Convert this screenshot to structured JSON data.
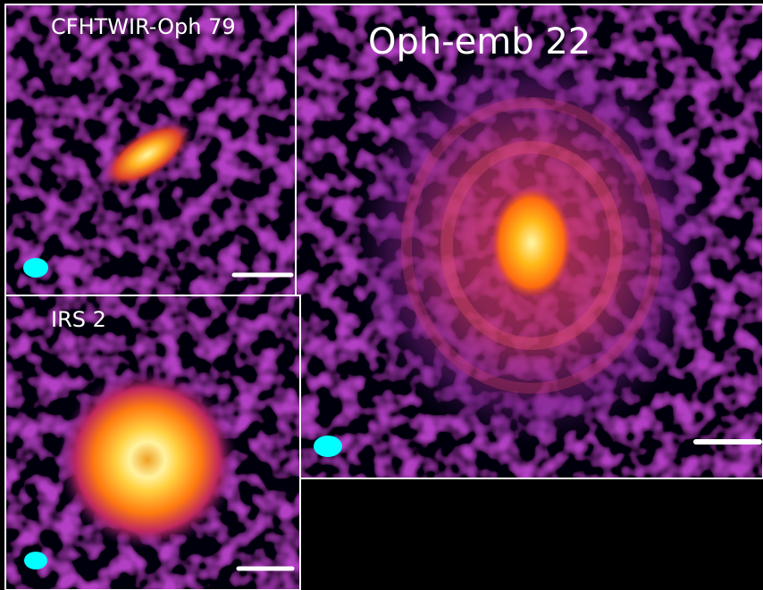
{
  "panels": [
    {
      "label": "CFHTWIR-Oph 79"
    },
    {
      "label": "Oph-emb 22"
    },
    {
      "label": "IRS 2"
    }
  ]
}
